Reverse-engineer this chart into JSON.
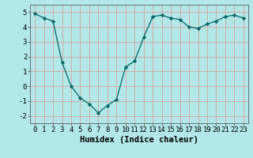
{
  "x": [
    0,
    1,
    2,
    3,
    4,
    5,
    6,
    7,
    8,
    9,
    10,
    11,
    12,
    13,
    14,
    15,
    16,
    17,
    18,
    19,
    20,
    21,
    22,
    23
  ],
  "y": [
    4.9,
    4.6,
    4.4,
    1.6,
    0.0,
    -0.8,
    -1.2,
    -1.8,
    -1.3,
    -0.9,
    1.3,
    1.7,
    3.3,
    4.7,
    4.8,
    4.6,
    4.5,
    4.0,
    3.9,
    4.2,
    4.4,
    4.7,
    4.8,
    4.6
  ],
  "line_color": "#006666",
  "marker": "D",
  "markersize": 2.2,
  "linewidth": 0.9,
  "xlabel": "Humidex (Indice chaleur)",
  "ylim": [
    -2.5,
    5.5
  ],
  "xlim": [
    -0.5,
    23.5
  ],
  "yticks": [
    -2,
    -1,
    0,
    1,
    2,
    3,
    4,
    5
  ],
  "xticks": [
    0,
    1,
    2,
    3,
    4,
    5,
    6,
    7,
    8,
    9,
    10,
    11,
    12,
    13,
    14,
    15,
    16,
    17,
    18,
    19,
    20,
    21,
    22,
    23
  ],
  "bg_color": "#b2e8e8",
  "grid_color": "#d9a0a0",
  "axes_bg": "#b2e8e8",
  "xlabel_fontsize": 7.5,
  "tick_fontsize": 6.5,
  "spine_color": "#444444"
}
